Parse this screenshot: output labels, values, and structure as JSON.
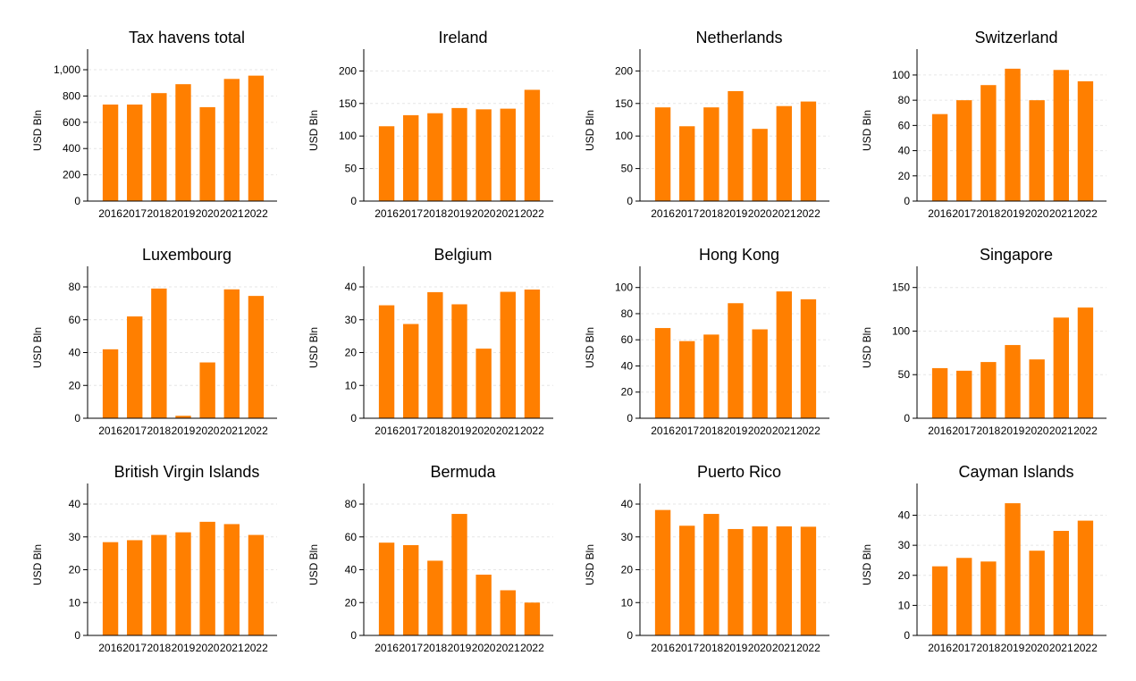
{
  "chart_data": [
    {
      "type": "bar",
      "title": "Tax havens total",
      "ylabel": "USD Bln",
      "categories": [
        "2016",
        "2017",
        "2018",
        "2019",
        "2020",
        "2021",
        "2022"
      ],
      "values": [
        735,
        735,
        822,
        890,
        715,
        930,
        955
      ],
      "ylim": [
        0,
        1075
      ],
      "yticks": [
        0,
        200,
        400,
        600,
        800,
        1000
      ],
      "ytick_labels": [
        "0",
        "200",
        "400",
        "600",
        "800",
        "1,000"
      ],
      "color": "#ff7f00",
      "grid": true
    },
    {
      "type": "bar",
      "title": "Ireland",
      "ylabel": "USD Bln",
      "categories": [
        "2016",
        "2017",
        "2018",
        "2019",
        "2020",
        "2021",
        "2022"
      ],
      "values": [
        115,
        132,
        135,
        143,
        141,
        142,
        171
      ],
      "ylim": [
        0,
        217
      ],
      "yticks": [
        0,
        50,
        100,
        150,
        200
      ],
      "ytick_labels": [
        "0",
        "50",
        "100",
        "150",
        "200"
      ],
      "color": "#ff7f00",
      "grid": true
    },
    {
      "type": "bar",
      "title": "Netherlands",
      "ylabel": "USD Bln",
      "categories": [
        "2016",
        "2017",
        "2018",
        "2019",
        "2020",
        "2021",
        "2022"
      ],
      "values": [
        144,
        115,
        144,
        169,
        111,
        146,
        153
      ],
      "ylim": [
        0,
        217
      ],
      "yticks": [
        0,
        50,
        100,
        150,
        200
      ],
      "ytick_labels": [
        "0",
        "50",
        "100",
        "150",
        "200"
      ],
      "color": "#ff7f00",
      "grid": true
    },
    {
      "type": "bar",
      "title": "Switzerland",
      "ylabel": "USD Bln",
      "categories": [
        "2016",
        "2017",
        "2018",
        "2019",
        "2020",
        "2021",
        "2022"
      ],
      "values": [
        69,
        80,
        92,
        105,
        80,
        104,
        95
      ],
      "ylim": [
        0,
        112
      ],
      "yticks": [
        0,
        20,
        40,
        60,
        80,
        100
      ],
      "ytick_labels": [
        "0",
        "20",
        "40",
        "60",
        "80",
        "100"
      ],
      "color": "#ff7f00",
      "grid": true
    },
    {
      "type": "bar",
      "title": "Luxembourg",
      "ylabel": "USD Bln",
      "categories": [
        "2016",
        "2017",
        "2018",
        "2019",
        "2020",
        "2021",
        "2022"
      ],
      "values": [
        42,
        62,
        79,
        1.5,
        34,
        78.5,
        74.5
      ],
      "ylim": [
        0,
        86
      ],
      "yticks": [
        0,
        20,
        40,
        60,
        80
      ],
      "ytick_labels": [
        "0",
        "20",
        "40",
        "60",
        "80"
      ],
      "color": "#ff7f00",
      "grid": true
    },
    {
      "type": "bar",
      "title": "Belgium",
      "ylabel": "USD Bln",
      "categories": [
        "2016",
        "2017",
        "2018",
        "2019",
        "2020",
        "2021",
        "2022"
      ],
      "values": [
        34.4,
        28.7,
        38.4,
        34.7,
        21.2,
        38.5,
        39.2
      ],
      "ylim": [
        0,
        43
      ],
      "yticks": [
        0,
        10,
        20,
        30,
        40
      ],
      "ytick_labels": [
        "0",
        "10",
        "20",
        "30",
        "40"
      ],
      "color": "#ff7f00",
      "grid": true
    },
    {
      "type": "bar",
      "title": "Hong Kong",
      "ylabel": "USD Bln",
      "categories": [
        "2016",
        "2017",
        "2018",
        "2019",
        "2020",
        "2021",
        "2022"
      ],
      "values": [
        69,
        59,
        64,
        88,
        68,
        97,
        91
      ],
      "ylim": [
        0,
        108
      ],
      "yticks": [
        0,
        20,
        40,
        60,
        80,
        100
      ],
      "ytick_labels": [
        "0",
        "20",
        "40",
        "60",
        "80",
        "100"
      ],
      "color": "#ff7f00",
      "grid": true
    },
    {
      "type": "bar",
      "title": "Singapore",
      "ylabel": "USD Bln",
      "categories": [
        "2016",
        "2017",
        "2018",
        "2019",
        "2020",
        "2021",
        "2022"
      ],
      "values": [
        57.5,
        54.5,
        64.5,
        84,
        67.5,
        115.5,
        127
      ],
      "ylim": [
        0,
        162
      ],
      "yticks": [
        0,
        50,
        100,
        150
      ],
      "ytick_labels": [
        "0",
        "50",
        "100",
        "150"
      ],
      "color": "#ff7f00",
      "grid": true
    },
    {
      "type": "bar",
      "title": "British Virgin Islands",
      "ylabel": "USD Bln",
      "categories": [
        "2016",
        "2017",
        "2018",
        "2019",
        "2020",
        "2021",
        "2022"
      ],
      "values": [
        28.4,
        29,
        30.6,
        31.4,
        34.6,
        33.9,
        30.6
      ],
      "ylim": [
        0,
        43
      ],
      "yticks": [
        0,
        10,
        20,
        30,
        40
      ],
      "ytick_labels": [
        "0",
        "10",
        "20",
        "30",
        "40"
      ],
      "color": "#ff7f00",
      "grid": true
    },
    {
      "type": "bar",
      "title": "Bermuda",
      "ylabel": "USD Bln",
      "categories": [
        "2016",
        "2017",
        "2018",
        "2019",
        "2020",
        "2021",
        "2022"
      ],
      "values": [
        56.5,
        55,
        45.5,
        74,
        37,
        27.5,
        20
      ],
      "ylim": [
        0,
        86
      ],
      "yticks": [
        0,
        20,
        40,
        60,
        80
      ],
      "ytick_labels": [
        "0",
        "20",
        "40",
        "60",
        "80"
      ],
      "color": "#ff7f00",
      "grid": true
    },
    {
      "type": "bar",
      "title": "Puerto Rico",
      "ylabel": "USD Bln",
      "categories": [
        "2016",
        "2017",
        "2018",
        "2019",
        "2020",
        "2021",
        "2022"
      ],
      "values": [
        38.2,
        33.4,
        37,
        32.4,
        33.2,
        33.2,
        33.1
      ],
      "ylim": [
        0,
        43
      ],
      "yticks": [
        0,
        10,
        20,
        30,
        40
      ],
      "ytick_labels": [
        "0",
        "10",
        "20",
        "30",
        "40"
      ],
      "color": "#ff7f00",
      "grid": true
    },
    {
      "type": "bar",
      "title": "Cayman Islands",
      "ylabel": "USD Bln",
      "categories": [
        "2016",
        "2017",
        "2018",
        "2019",
        "2020",
        "2021",
        "2022"
      ],
      "values": [
        23,
        25.8,
        24.6,
        44,
        28.2,
        34.8,
        38.2
      ],
      "ylim": [
        0,
        47
      ],
      "yticks": [
        0,
        10,
        20,
        30,
        40
      ],
      "ytick_labels": [
        "0",
        "10",
        "20",
        "30",
        "40"
      ],
      "color": "#ff7f00",
      "grid": true
    }
  ]
}
